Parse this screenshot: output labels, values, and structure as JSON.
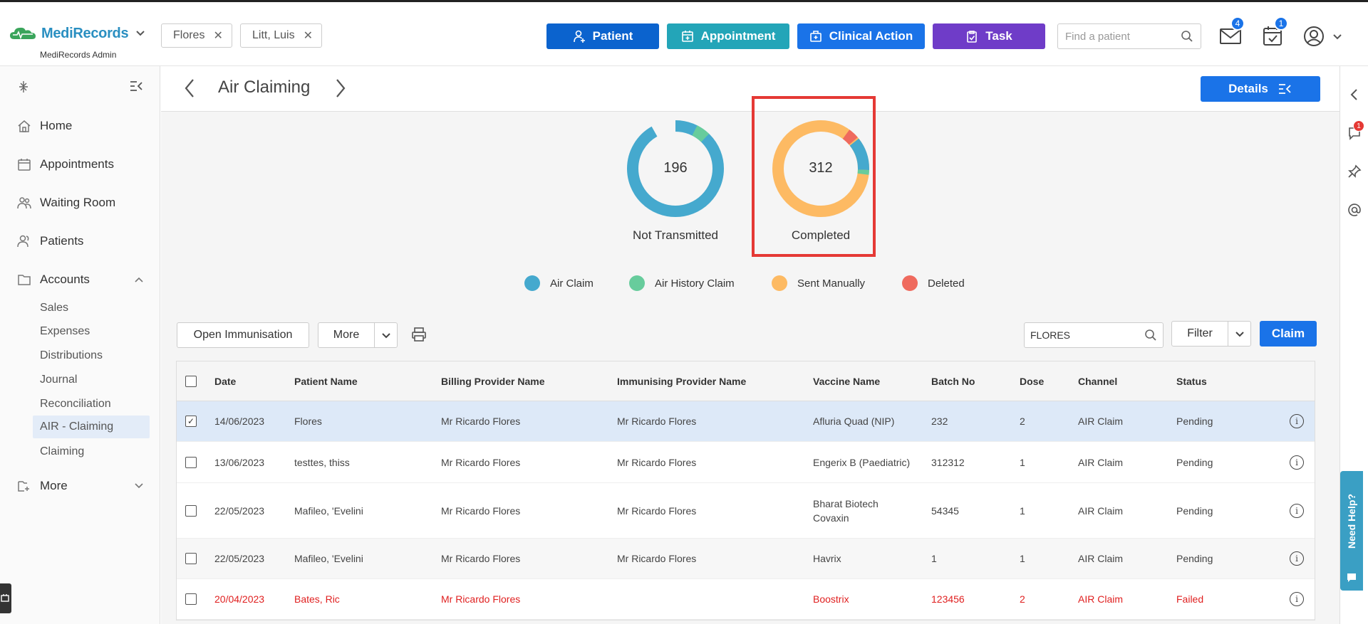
{
  "app": {
    "name": "MediRecords",
    "subtitle": "MediRecords Admin"
  },
  "patient_chips": [
    "Flores",
    "Litt, Luis"
  ],
  "header_buttons": {
    "patient": "Patient",
    "appointment": "Appointment",
    "clinical_action": "Clinical Action",
    "task": "Task"
  },
  "search": {
    "placeholder": "Find a patient"
  },
  "badges": {
    "mail": "4",
    "tasks": "1",
    "chat": "1"
  },
  "sidebar": {
    "nav": [
      "Home",
      "Appointments",
      "Waiting Room",
      "Patients",
      "Accounts"
    ],
    "accounts_sub": [
      "Sales",
      "Expenses",
      "Distributions",
      "Journal",
      "Reconciliation",
      "AIR - Claiming",
      "Claiming"
    ],
    "more": "More"
  },
  "page": {
    "title": "Air Claiming",
    "details_label": "Details"
  },
  "summary": {
    "not_transmitted": {
      "count": "196",
      "label": "Not Transmitted"
    },
    "completed": {
      "count": "312",
      "label": "Completed"
    }
  },
  "legend": [
    "Air Claim",
    "Air History Claim",
    "Sent Manually",
    "Deleted"
  ],
  "colors": {
    "air_claim": "#45a9ce",
    "air_history": "#67cc9c",
    "sent_manually": "#fdba63",
    "deleted": "#ef6a5e",
    "primary": "#1a73e8",
    "teal": "#23a5b8",
    "purple": "#6f3cc8",
    "failed": "#e02020"
  },
  "toolbar": {
    "open_immunisation": "Open Immunisation",
    "more": "More",
    "search_value": "FLORES",
    "filter": "Filter",
    "claim": "Claim"
  },
  "table": {
    "headers": [
      "Date",
      "Patient Name",
      "Billing Provider Name",
      "Immunising Provider Name",
      "Vaccine Name",
      "Batch No",
      "Dose",
      "Channel",
      "Status"
    ],
    "rows": [
      {
        "date": "14/06/2023",
        "patient": "Flores",
        "billing": "Mr Ricardo Flores",
        "immunising": "Mr Ricardo Flores",
        "vaccine": "Afluria Quad (NIP)",
        "vaccine2": "",
        "batch": "232",
        "dose": "2",
        "channel": "AIR Claim",
        "status": "Pending",
        "checked": "✓"
      },
      {
        "date": "13/06/2023",
        "patient": "testtes, thiss",
        "billing": "Mr Ricardo Flores",
        "immunising": "Mr Ricardo Flores",
        "vaccine": "Engerix B (Paediatric)",
        "vaccine2": "",
        "batch": "312312",
        "dose": "1",
        "channel": "AIR Claim",
        "status": "Pending",
        "checked": ""
      },
      {
        "date": "22/05/2023",
        "patient": "Mafileo, 'Evelini",
        "billing": "Mr Ricardo Flores",
        "immunising": "Mr Ricardo Flores",
        "vaccine": "Bharat Biotech",
        "vaccine2": "Covaxin",
        "batch": "54345",
        "dose": "1",
        "channel": "AIR Claim",
        "status": "Pending",
        "checked": ""
      },
      {
        "date": "22/05/2023",
        "patient": "Mafileo, 'Evelini",
        "billing": "Mr Ricardo Flores",
        "immunising": "Mr Ricardo Flores",
        "vaccine": "Havrix",
        "vaccine2": "",
        "batch": "1",
        "dose": "1",
        "channel": "AIR Claim",
        "status": "Pending",
        "checked": ""
      },
      {
        "date": "20/04/2023",
        "patient": "Bates, Ric",
        "billing": "Mr Ricardo Flores",
        "immunising": "",
        "vaccine": "Boostrix",
        "vaccine2": "",
        "batch": "123456",
        "dose": "2",
        "channel": "AIR Claim",
        "status": "Failed",
        "checked": ""
      }
    ]
  },
  "need_help": "Need Help?"
}
